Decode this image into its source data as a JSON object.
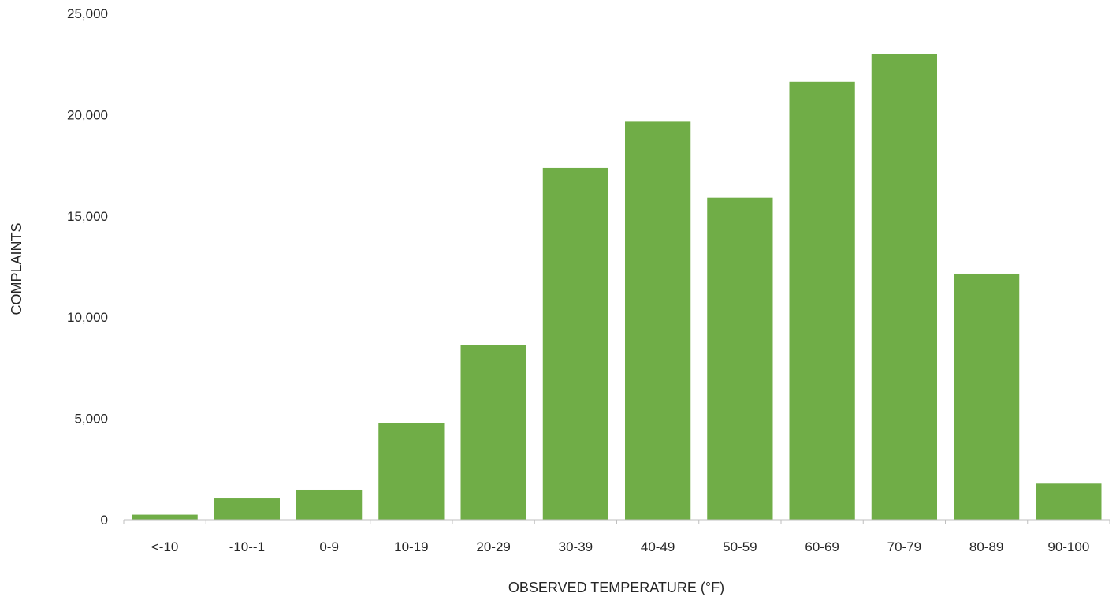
{
  "chart_data": {
    "type": "bar",
    "title": "",
    "xlabel": "OBSERVED TEMPERATURE (°F)",
    "ylabel": "COMPLAINTS",
    "categories": [
      "<-10",
      "-10--1",
      "0-9",
      "10-19",
      "20-29",
      "30-39",
      "40-49",
      "50-59",
      "60-69",
      "70-79",
      "80-89",
      "90-100"
    ],
    "values": [
      250,
      1050,
      1480,
      4780,
      8620,
      17370,
      19650,
      15900,
      21620,
      23000,
      12150,
      1780
    ],
    "ylim": [
      0,
      25000
    ],
    "yticks": [
      0,
      5000,
      10000,
      15000,
      20000,
      25000
    ],
    "ytick_labels": [
      "0",
      "5,000",
      "10,000",
      "15,000",
      "20,000",
      "25,000"
    ],
    "grid": false,
    "legend": "none",
    "colors": {
      "bar": "#70ad47",
      "axis": "#bfbfbf",
      "text": "#262626"
    }
  }
}
